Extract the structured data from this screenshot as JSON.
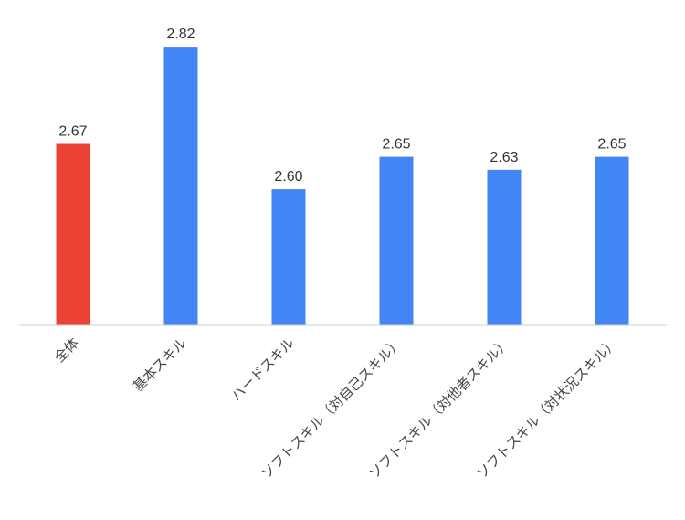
{
  "chart_data": {
    "type": "bar",
    "categories": [
      "全体",
      "基本スキル",
      "ハードスキル",
      "ソフトスキル（対自己スキル）",
      "ソフトスキル（対他者スキル）",
      "ソフトスキル（対状況スキル）"
    ],
    "values": [
      2.67,
      2.82,
      2.6,
      2.65,
      2.63,
      2.65
    ],
    "value_labels": [
      "2.67",
      "2.82",
      "2.60",
      "2.65",
      "2.63",
      "2.65"
    ],
    "colors": [
      "#EA4335",
      "#4285F4",
      "#4285F4",
      "#4285F4",
      "#4285F4",
      "#4285F4"
    ],
    "ylim": [
      2.39,
      2.83
    ],
    "grid": false,
    "legend": "none"
  }
}
